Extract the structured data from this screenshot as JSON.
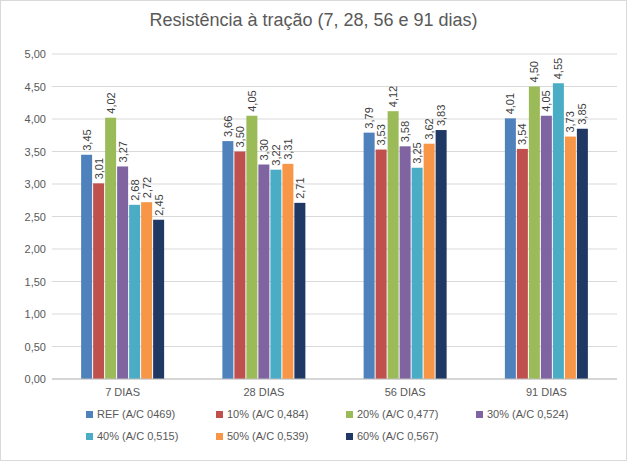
{
  "chart_data": {
    "type": "bar",
    "title": "Resistência à tração (7, 28, 56 e 91 dias)",
    "categories": [
      "7 DIAS",
      "28 DIAS",
      "56 DIAS",
      "91 DIAS"
    ],
    "series": [
      {
        "name": "REF (A/C 0469)",
        "color": "#4f81bd",
        "values": [
          3.45,
          3.66,
          3.79,
          4.01
        ],
        "value_labels": [
          "3,45",
          "3,66",
          "3,79",
          "4,01"
        ]
      },
      {
        "name": "10% (A/C 0,484)",
        "color": "#c0504d",
        "values": [
          3.01,
          3.5,
          3.53,
          3.54
        ],
        "value_labels": [
          "3,01",
          "3,50",
          "3,53",
          "3,54"
        ]
      },
      {
        "name": "20% (A/C 0,477)",
        "color": "#9bbb59",
        "values": [
          4.02,
          4.05,
          4.12,
          4.5
        ],
        "value_labels": [
          "4,02",
          "4,05",
          "4,12",
          "4,50"
        ]
      },
      {
        "name": "30% (A/C 0,524)",
        "color": "#8064a2",
        "values": [
          3.27,
          3.3,
          3.58,
          4.05
        ],
        "value_labels": [
          "3,27",
          "3,30",
          "3,58",
          "4,05"
        ]
      },
      {
        "name": "40% (A/C 0,515)",
        "color": "#4bacc6",
        "values": [
          2.68,
          3.22,
          3.25,
          4.55
        ],
        "value_labels": [
          "2,68",
          "3,22",
          "3,25",
          "4,55"
        ]
      },
      {
        "name": "50% (A/C 0,539)",
        "color": "#f79646",
        "values": [
          2.72,
          3.31,
          3.62,
          3.73
        ],
        "value_labels": [
          "2,72",
          "3,31",
          "3,62",
          "3,73"
        ]
      },
      {
        "name": "60% (A/C 0,567)",
        "color": "#1f3864",
        "values": [
          2.45,
          2.71,
          3.83,
          3.85
        ],
        "value_labels": [
          "2,45",
          "2,71",
          "3,83",
          "3,85"
        ]
      }
    ],
    "ylim": [
      0,
      5
    ],
    "yticks": [
      {
        "value": 0,
        "label": "0,00"
      },
      {
        "value": 0.5,
        "label": "0,50"
      },
      {
        "value": 1,
        "label": "1,00"
      },
      {
        "value": 1.5,
        "label": "1,50"
      },
      {
        "value": 2,
        "label": "2,00"
      },
      {
        "value": 2.5,
        "label": "2,50"
      },
      {
        "value": 3,
        "label": "3,00"
      },
      {
        "value": 3.5,
        "label": "3,50"
      },
      {
        "value": 4,
        "label": "4,00"
      },
      {
        "value": 4.5,
        "label": "4,50"
      },
      {
        "value": 5,
        "label": "5,00"
      }
    ],
    "grid": true,
    "legend": "bottom",
    "data_labels": true
  }
}
